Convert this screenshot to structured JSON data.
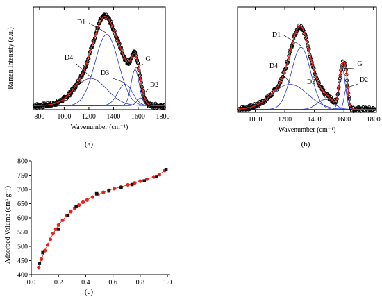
{
  "chart_data": [
    {
      "panel": "(a)",
      "type": "line",
      "xlabel": "Wavenumber (cm⁻¹)",
      "ylabel": "Raman Intensity (a.u.)",
      "xlim": [
        750,
        1820
      ],
      "xticks": [
        "800",
        "1000",
        "1200",
        "1400",
        "1600",
        "1800"
      ],
      "xtick_values": [
        800,
        1000,
        1200,
        1400,
        1600,
        1800
      ],
      "ylim": [
        0,
        1.0
      ],
      "yticks_shown": false,
      "baseline": 0.04,
      "bands": [
        {
          "label": "D4",
          "center": 1215,
          "width": 130,
          "amp": 0.28
        },
        {
          "label": "D1",
          "center": 1345,
          "width": 95,
          "amp": 0.73
        },
        {
          "label": "D3",
          "center": 1495,
          "width": 60,
          "amp": 0.22
        },
        {
          "label": "G",
          "center": 1575,
          "width": 33,
          "amp": 0.37
        },
        {
          "label": "D2",
          "center": 1620,
          "width": 30,
          "amp": 0.08
        }
      ],
      "colors": {
        "data": "#000000",
        "fit": "#e8241c",
        "bands": "#2030c8"
      }
    },
    {
      "panel": "(b)",
      "type": "line",
      "xlabel": "Wavenumber (cm⁻¹)",
      "ylabel": "",
      "xlim": [
        880,
        1820
      ],
      "xticks": [
        "1000",
        "1200",
        "1400",
        "1600",
        "1800"
      ],
      "xtick_values": [
        1000,
        1200,
        1400,
        1600,
        1800
      ],
      "ylim": [
        0,
        1.0
      ],
      "yticks_shown": false,
      "baseline": 0.03,
      "bands": [
        {
          "label": "D4",
          "center": 1235,
          "width": 120,
          "amp": 0.25
        },
        {
          "label": "D1",
          "center": 1310,
          "width": 65,
          "amp": 0.62
        },
        {
          "label": "D3",
          "center": 1475,
          "width": 55,
          "amp": 0.1
        },
        {
          "label": "G",
          "center": 1590,
          "width": 20,
          "amp": 0.4
        },
        {
          "label": "D2",
          "center": 1615,
          "width": 14,
          "amp": 0.2
        }
      ],
      "colors": {
        "data": "#000000",
        "fit": "#e8241c",
        "bands": "#2030c8"
      }
    },
    {
      "panel": "(c)",
      "type": "scatter",
      "xlabel": "",
      "ylabel": "Adsorbed Volume (cm³ g⁻¹)",
      "xlim": [
        0.0,
        1.02
      ],
      "ylim": [
        400,
        800
      ],
      "xticks": [
        "0.0",
        "0.2",
        "0.4",
        "0.6",
        "0.8",
        "1.0"
      ],
      "xtick_values": [
        0.0,
        0.2,
        0.4,
        0.6,
        0.8,
        1.0
      ],
      "yticks": [
        "400",
        "450",
        "500",
        "550",
        "600",
        "650",
        "700",
        "750",
        "800"
      ],
      "ytick_values": [
        400,
        450,
        500,
        550,
        600,
        650,
        700,
        750,
        800
      ],
      "series": [
        {
          "color": "#e8241c",
          "marker": "circle",
          "x": [
            0.055,
            0.075,
            0.1,
            0.12,
            0.14,
            0.16,
            0.18,
            0.2,
            0.23,
            0.26,
            0.29,
            0.32,
            0.35,
            0.38,
            0.41,
            0.45,
            0.49,
            0.53,
            0.57,
            0.61,
            0.66,
            0.71,
            0.76,
            0.8,
            0.85,
            0.9,
            0.94,
            0.98
          ],
          "y": [
            425,
            455,
            485,
            505,
            525,
            545,
            560,
            575,
            592,
            608,
            622,
            634,
            645,
            655,
            663,
            673,
            682,
            690,
            697,
            703,
            709,
            716,
            723,
            729,
            736,
            744,
            752,
            766
          ]
        },
        {
          "color": "#111111",
          "marker": "square",
          "x": [
            0.06,
            0.085,
            0.2,
            0.27,
            0.33,
            0.48,
            0.57,
            0.66,
            0.74,
            0.83,
            0.92,
            0.99
          ],
          "y": [
            440,
            478,
            560,
            608,
            640,
            685,
            695,
            706,
            717,
            730,
            745,
            770
          ]
        }
      ]
    }
  ],
  "panels": {
    "a_label": "(a)",
    "b_label": "(b)",
    "c_label": "(c)"
  }
}
